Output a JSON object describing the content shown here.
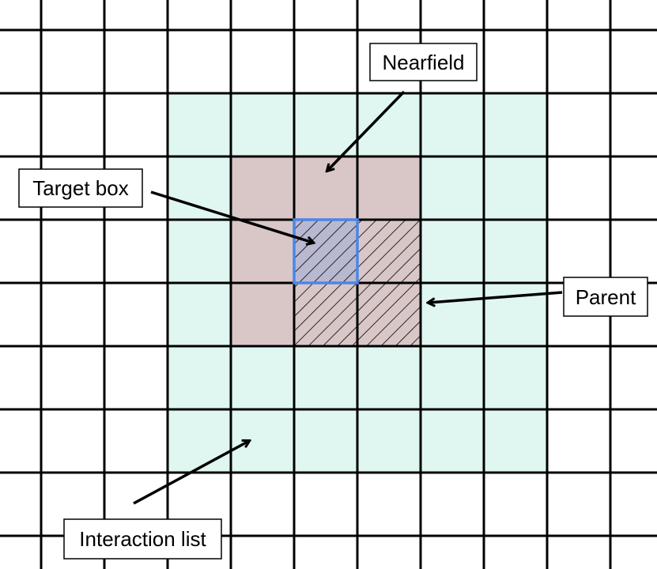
{
  "labels": {
    "nearfield": "Nearfield",
    "target_box": "Target box",
    "parent": "Parent",
    "interaction_list": "Interaction list"
  },
  "colors": {
    "interaction_fill": "#dff6f1",
    "nearfield_fill": "#d9c7c7",
    "target_fill": "#b8b9d0",
    "target_stroke": "#4a86e8",
    "hatch_stroke": "#000000",
    "grid_stroke": "#000000"
  },
  "regions": {
    "interaction_list": "6x6 cells",
    "nearfield": "3x3 cells",
    "parent": "2x2 cells (hatched)",
    "target_box": "1 cell (blue outline)"
  }
}
